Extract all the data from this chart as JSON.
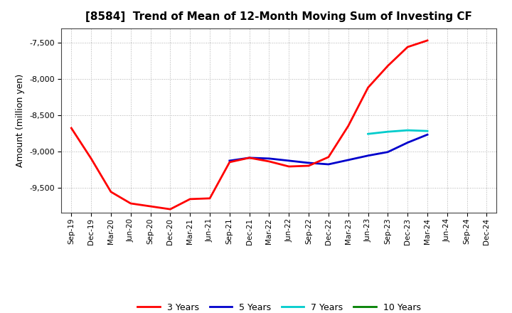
{
  "title": "[8584]  Trend of Mean of 12-Month Moving Sum of Investing CF",
  "ylabel": "Amount (million yen)",
  "background_color": "#ffffff",
  "grid_color": "#b0b0b0",
  "ylim": [
    -9850,
    -7300
  ],
  "yticks": [
    -9500,
    -9000,
    -8500,
    -8000,
    -7500
  ],
  "x_labels": [
    "Sep-19",
    "Dec-19",
    "Mar-20",
    "Jun-20",
    "Sep-20",
    "Dec-20",
    "Mar-21",
    "Jun-21",
    "Sep-21",
    "Dec-21",
    "Mar-22",
    "Jun-22",
    "Sep-22",
    "Dec-22",
    "Mar-23",
    "Jun-23",
    "Sep-23",
    "Dec-23",
    "Mar-24",
    "Jun-24",
    "Sep-24",
    "Dec-24"
  ],
  "series_3y": {
    "label": "3 Years",
    "color": "#ff0000",
    "data_x": [
      0,
      1,
      2,
      3,
      4,
      5,
      6,
      7,
      8,
      9,
      10,
      11,
      12,
      13,
      14,
      15,
      16,
      17,
      18
    ],
    "data_y": [
      -8680,
      -9100,
      -9560,
      -9720,
      -9760,
      -9800,
      -9660,
      -9650,
      -9150,
      -9090,
      -9140,
      -9210,
      -9200,
      -9080,
      -8650,
      -8120,
      -7820,
      -7560,
      -7470
    ]
  },
  "series_5y": {
    "label": "5 Years",
    "color": "#0000cc",
    "data_x": [
      8,
      9,
      10,
      11,
      12,
      13,
      14,
      15,
      16,
      17,
      18
    ],
    "data_y": [
      -9130,
      -9090,
      -9100,
      -9130,
      -9160,
      -9180,
      -9120,
      -9060,
      -9010,
      -8880,
      -8770
    ]
  },
  "series_7y": {
    "label": "7 Years",
    "color": "#00cccc",
    "data_x": [
      15,
      16,
      17,
      18
    ],
    "data_y": [
      -8760,
      -8730,
      -8710,
      -8720
    ]
  },
  "series_10y": {
    "label": "10 Years",
    "color": "#008000",
    "data_x": [],
    "data_y": []
  },
  "legend_colors": [
    "#ff0000",
    "#0000cc",
    "#00cccc",
    "#008000"
  ],
  "legend_labels": [
    "3 Years",
    "5 Years",
    "7 Years",
    "10 Years"
  ]
}
